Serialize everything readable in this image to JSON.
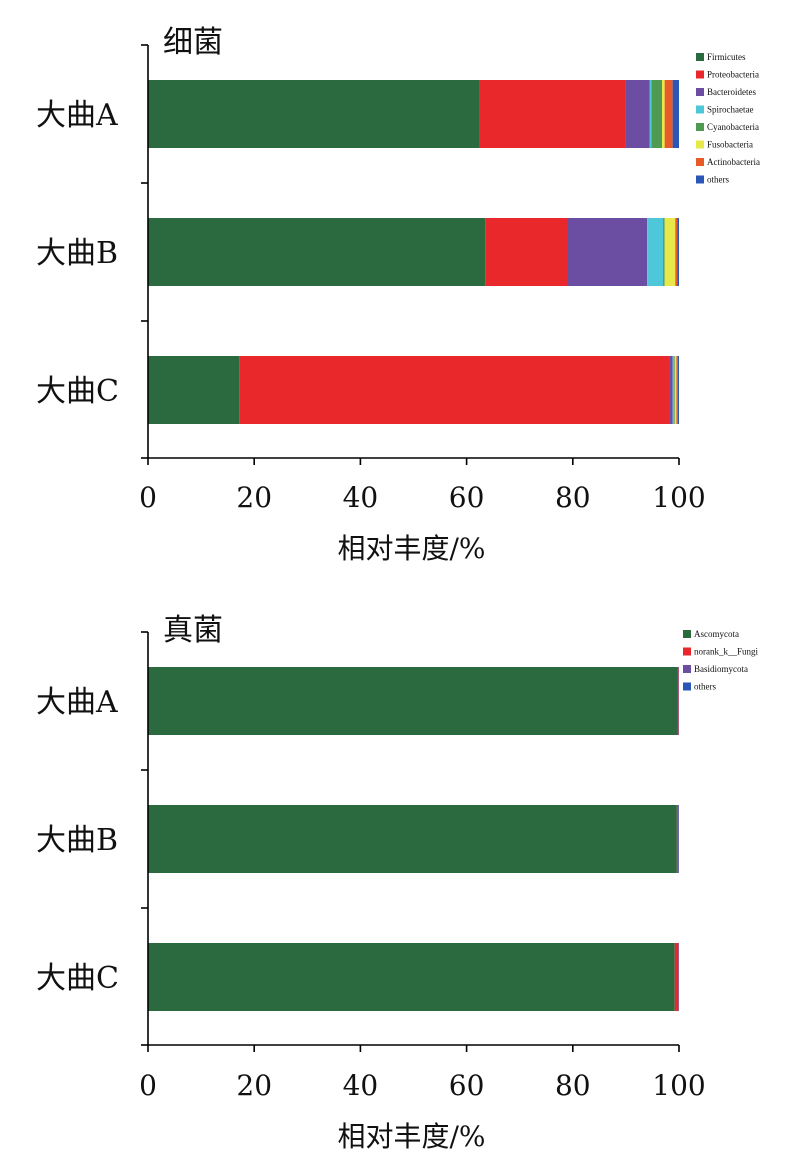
{
  "chart_data": [
    {
      "type": "bar",
      "orientation": "horizontal",
      "stacked": true,
      "title": "细菌",
      "xlabel": "相对丰度/%",
      "xlim": [
        0,
        100
      ],
      "xticks": [
        0,
        20,
        40,
        60,
        80,
        100
      ],
      "legend_position": "top-right",
      "grid": false,
      "categories": [
        "大曲A",
        "大曲B",
        "大曲C"
      ],
      "series": [
        {
          "name": "Firmicutes",
          "color": "#2a6a3e",
          "values": [
            62.5,
            63.5,
            17.2
          ]
        },
        {
          "name": "Proteobacteria",
          "color": "#e8282a",
          "values": [
            27.5,
            15.5,
            81.0
          ]
        },
        {
          "name": "Bacteroidetes",
          "color": "#6b4ea2",
          "values": [
            4.5,
            15.0,
            0.6
          ]
        },
        {
          "name": "Spirochaetae",
          "color": "#4ec8d8",
          "values": [
            0.3,
            3.0,
            0.2
          ]
        },
        {
          "name": "Cyanobacteria",
          "color": "#4f9a52",
          "values": [
            2.0,
            0.3,
            0.2
          ]
        },
        {
          "name": "Fusobacteria",
          "color": "#e8e84a",
          "values": [
            0.5,
            2.0,
            0.3
          ]
        },
        {
          "name": "Actinobacteria",
          "color": "#e85a28",
          "values": [
            1.5,
            0.4,
            0.3
          ]
        },
        {
          "name": "others",
          "color": "#2a56b8",
          "values": [
            1.2,
            0.3,
            0.2
          ]
        }
      ]
    },
    {
      "type": "bar",
      "orientation": "horizontal",
      "stacked": true,
      "title": "真菌",
      "xlabel": "相对丰度/%",
      "xlim": [
        0,
        100
      ],
      "xticks": [
        0,
        20,
        40,
        60,
        80,
        100
      ],
      "legend_position": "top-right",
      "grid": false,
      "categories": [
        "大曲A",
        "大曲B",
        "大曲C"
      ],
      "series": [
        {
          "name": "Ascomycota",
          "color": "#2a6a3e",
          "values": [
            99.8,
            99.6,
            99.2
          ]
        },
        {
          "name": "norank_k__Fungi",
          "color": "#e8282a",
          "values": [
            0.1,
            0.1,
            0.7
          ]
        },
        {
          "name": "Basidiomycota",
          "color": "#6b4ea2",
          "values": [
            0.05,
            0.25,
            0.05
          ]
        },
        {
          "name": "others",
          "color": "#2a56b8",
          "values": [
            0.05,
            0.05,
            0.05
          ]
        }
      ]
    }
  ]
}
